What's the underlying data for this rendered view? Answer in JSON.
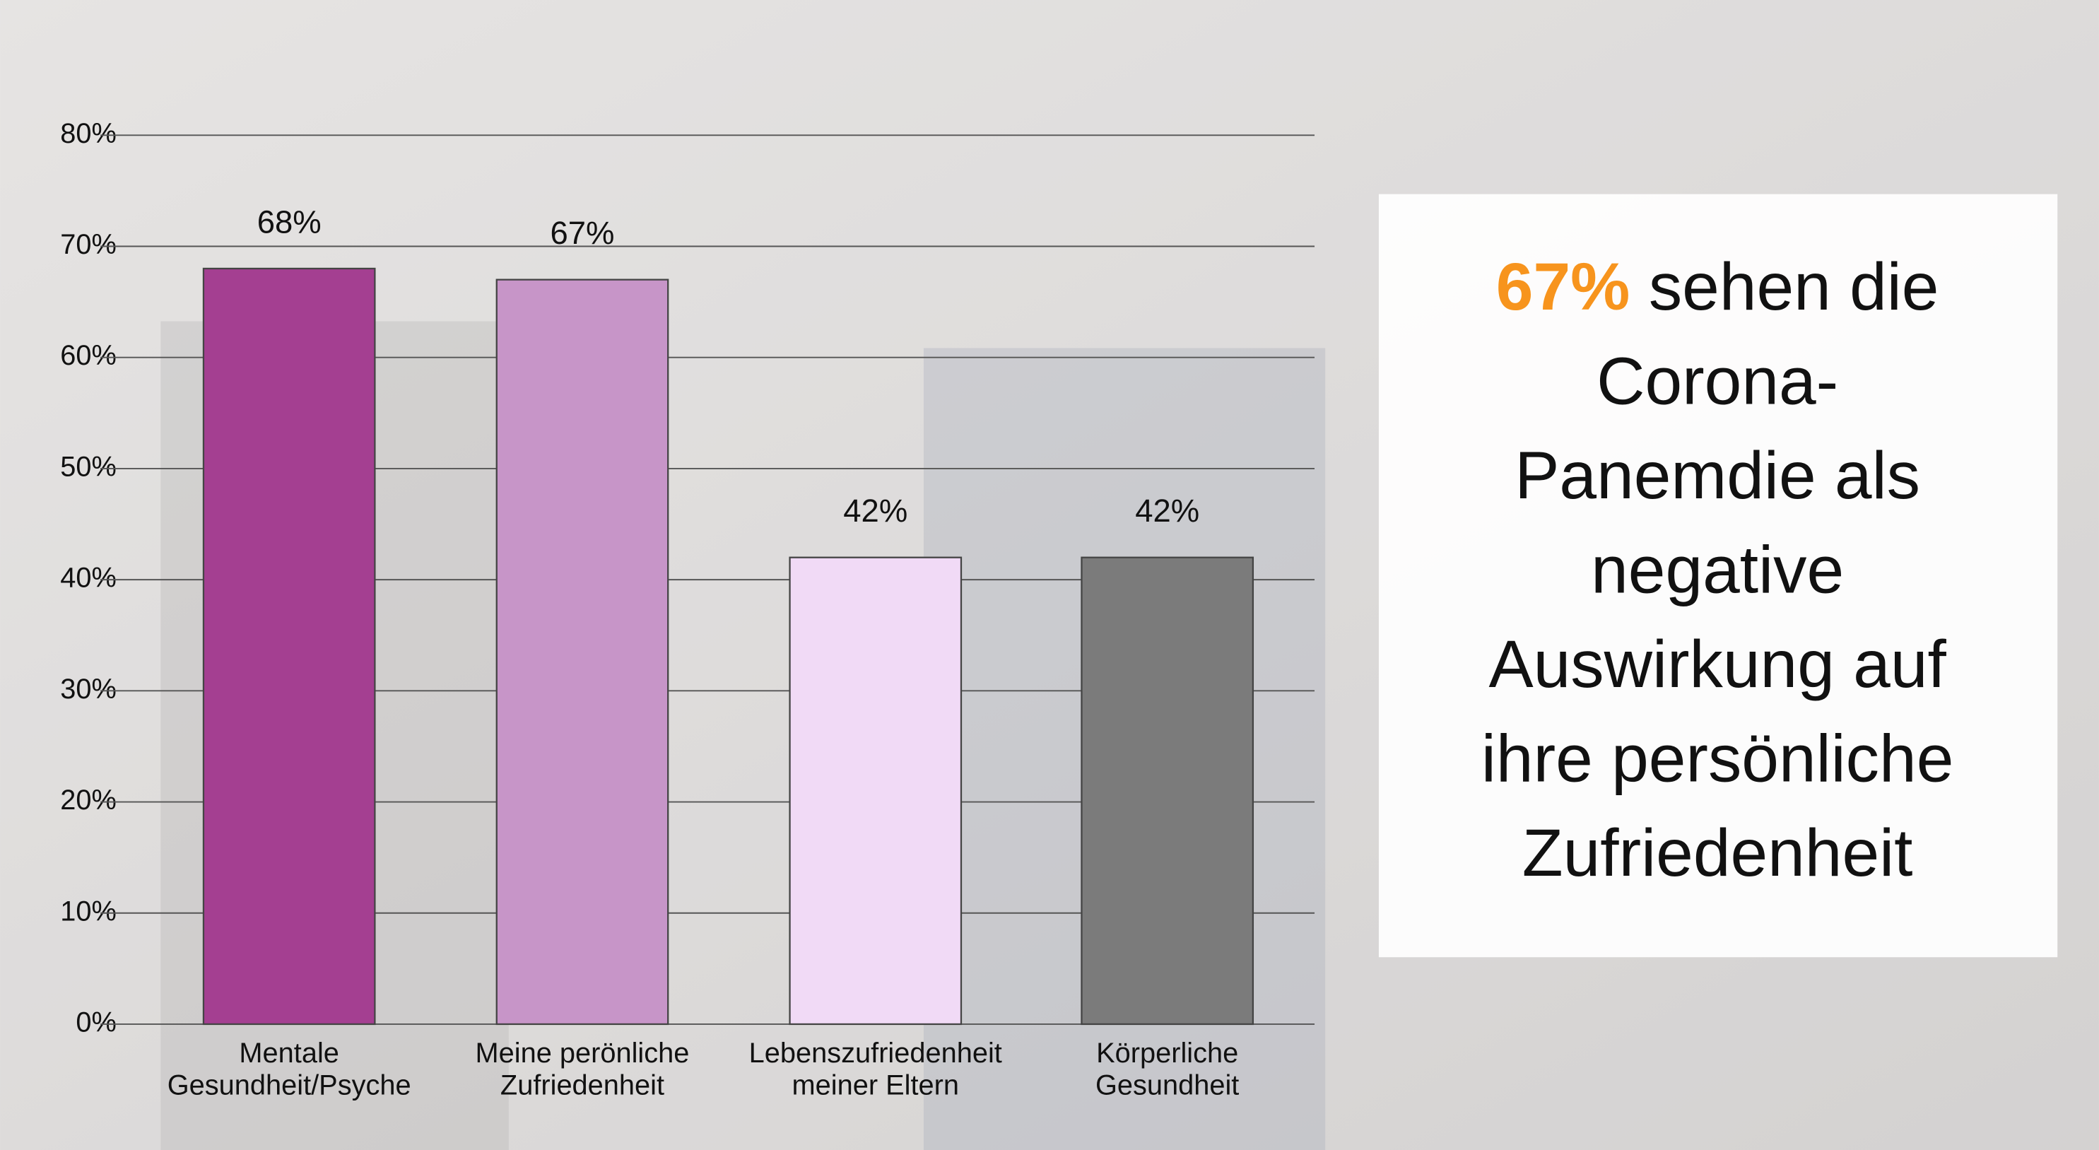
{
  "chart_data": {
    "type": "bar",
    "categories": [
      [
        "Mentale",
        "Gesundheit/Psyche"
      ],
      [
        "Meine perönliche",
        "Zufriedenheit"
      ],
      [
        "Lebenszufriedenheit",
        "meiner Eltern"
      ],
      [
        "Körperliche",
        "Gesundheit"
      ]
    ],
    "values": [
      68,
      67,
      42,
      42
    ],
    "value_labels": [
      "68%",
      "67%",
      "42%",
      "42%"
    ],
    "colors": [
      "#a43f91",
      "#c795c8",
      "#f1daf6",
      "#7b7b7b"
    ],
    "ylim": [
      0,
      80
    ],
    "yticks": [
      {
        "value": 0,
        "label": "0%"
      },
      {
        "value": 10,
        "label": "10%"
      },
      {
        "value": 20,
        "label": "20%"
      },
      {
        "value": 30,
        "label": "30%"
      },
      {
        "value": 40,
        "label": "40%"
      },
      {
        "value": 50,
        "label": "50%"
      },
      {
        "value": 60,
        "label": "60%"
      },
      {
        "value": 70,
        "label": "70%"
      },
      {
        "value": 80,
        "label": "80%"
      }
    ],
    "grid": true,
    "annotation": {
      "highlight": "67%",
      "lines": [
        "sehen die",
        "Corona-",
        "Panemdie als",
        "negative",
        "Auswirkung auf",
        "ihre persönliche",
        "Zufriedenheit"
      ]
    }
  }
}
